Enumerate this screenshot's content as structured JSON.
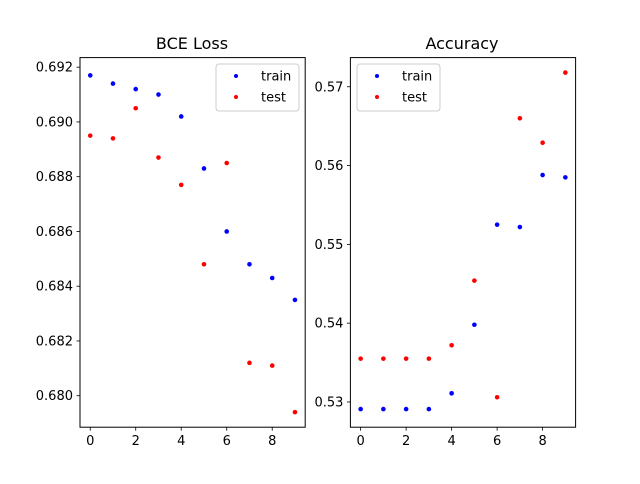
{
  "chart_data": [
    {
      "type": "scatter",
      "title": "BCE Loss",
      "xlabel": "",
      "ylabel": "",
      "xlim": [
        -0.45,
        9.45
      ],
      "ylim": [
        0.67885,
        0.69235
      ],
      "xticks": [
        0,
        2,
        4,
        6,
        8
      ],
      "yticks": [
        0.68,
        0.682,
        0.684,
        0.686,
        0.688,
        0.69,
        0.692
      ],
      "xtick_labels": [
        "0",
        "2",
        "4",
        "6",
        "8"
      ],
      "ytick_labels": [
        "0.680",
        "0.682",
        "0.684",
        "0.686",
        "0.688",
        "0.690",
        "0.692"
      ],
      "grid": false,
      "legend": "top-right",
      "series": [
        {
          "name": "train",
          "color": "#0000ff",
          "x": [
            0,
            1,
            2,
            3,
            4,
            5,
            6,
            7,
            8,
            9
          ],
          "values": [
            0.6917,
            0.6914,
            0.6912,
            0.691,
            0.6902,
            0.6883,
            0.686,
            0.6848,
            0.6843,
            0.6835
          ]
        },
        {
          "name": "test",
          "color": "#ff0000",
          "x": [
            0,
            1,
            2,
            3,
            4,
            5,
            6,
            7,
            8,
            9
          ],
          "values": [
            0.6895,
            0.6894,
            0.6905,
            0.6887,
            0.6877,
            0.6848,
            0.6885,
            0.6812,
            0.6811,
            0.6794
          ]
        }
      ]
    },
    {
      "type": "scatter",
      "title": "Accuracy",
      "xlabel": "",
      "ylabel": "",
      "xlim": [
        -0.45,
        9.45
      ],
      "ylim": [
        0.5268,
        0.5737
      ],
      "xticks": [
        0,
        2,
        4,
        6,
        8
      ],
      "yticks": [
        0.53,
        0.54,
        0.55,
        0.56,
        0.57
      ],
      "xtick_labels": [
        "0",
        "2",
        "4",
        "6",
        "8"
      ],
      "ytick_labels": [
        "0.53",
        "0.54",
        "0.55",
        "0.56",
        "0.57"
      ],
      "grid": false,
      "legend": "top-left",
      "series": [
        {
          "name": "train",
          "color": "#0000ff",
          "x": [
            0,
            1,
            2,
            3,
            4,
            5,
            6,
            7,
            8,
            9
          ],
          "values": [
            0.5291,
            0.5291,
            0.5291,
            0.5291,
            0.5311,
            0.5398,
            0.5525,
            0.5522,
            0.5588,
            0.5585
          ]
        },
        {
          "name": "test",
          "color": "#ff0000",
          "x": [
            0,
            1,
            2,
            3,
            4,
            5,
            6,
            7,
            8,
            9
          ],
          "values": [
            0.5355,
            0.5355,
            0.5355,
            0.5355,
            0.5372,
            0.5454,
            0.5306,
            0.566,
            0.5629,
            0.5718
          ]
        }
      ]
    }
  ]
}
